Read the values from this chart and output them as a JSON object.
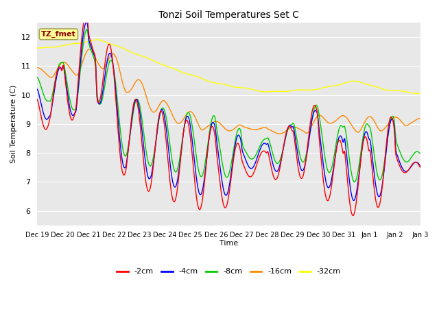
{
  "title": "Tonzi Soil Temperatures Set C",
  "xlabel": "Time",
  "ylabel": "Soil Temperature (C)",
  "ylim": [
    5.5,
    12.5
  ],
  "annotation_text": "TZ_fmet",
  "annotation_color": "#8B0000",
  "annotation_bg": "#FFFF99",
  "line_colors": {
    "-2cm": "#FF0000",
    "-4cm": "#0000FF",
    "-8cm": "#00CC00",
    "-16cm": "#FF8800",
    "-32cm": "#FFFF00"
  },
  "legend_labels": [
    "-2cm",
    "-4cm",
    "-8cm",
    "-16cm",
    "-32cm"
  ],
  "bg_color": "#E8E8E8",
  "grid_color": "#FFFFFF",
  "xtick_labels": [
    "Dec 19",
    "Dec 20",
    "Dec 21",
    "Dec 22",
    "Dec 23",
    "Dec 24",
    "Dec 25",
    "Dec 26",
    "Dec 27",
    "Dec 28",
    "Dec 29",
    "Dec 30",
    "Dec 31",
    "Jan 1",
    "Jan 2",
    "Jan 3"
  ]
}
